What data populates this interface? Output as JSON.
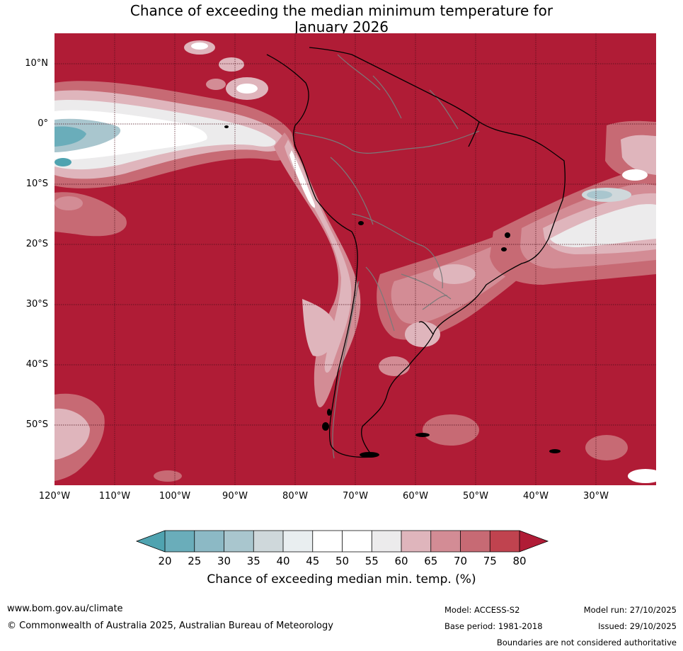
{
  "title": {
    "line1": "Chance of exceeding the median minimum temperature for",
    "line2": "January 2026"
  },
  "map": {
    "lat_ticks": [
      "10°N",
      "0°",
      "10°S",
      "20°S",
      "30°S",
      "40°S",
      "50°S"
    ],
    "lon_ticks": [
      "120°W",
      "110°W",
      "100°W",
      "90°W",
      "80°W",
      "70°W",
      "60°W",
      "50°W",
      "40°W",
      "30°W"
    ]
  },
  "colorbar": {
    "tick_labels": [
      "20",
      "25",
      "30",
      "35",
      "40",
      "45",
      "50",
      "55",
      "60",
      "65",
      "70",
      "75",
      "80"
    ],
    "colors": [
      "#4fa3b0",
      "#6aadba",
      "#8cb9c5",
      "#a9c6ce",
      "#cfd8db",
      "#e9eef0",
      "#ffffff",
      "#ffffff",
      "#ecebec",
      "#dfb5bc",
      "#d38c95",
      "#c76a74",
      "#c0434f",
      "#b01c36"
    ],
    "title": "Chance of exceeding median min. temp. (%)"
  },
  "footer": {
    "url": "www.bom.gov.au/climate",
    "copyright": "© Commonwealth of Australia 2025, Australian Bureau of Meteorology",
    "model": "Model: ACCESS-S2",
    "base_period": "Base period: 1981-2018",
    "model_run": "Model run: 27/10/2025",
    "issued": "Issued: 29/10/2025",
    "disclaimer": "Boundaries are not considered authoritative"
  }
}
